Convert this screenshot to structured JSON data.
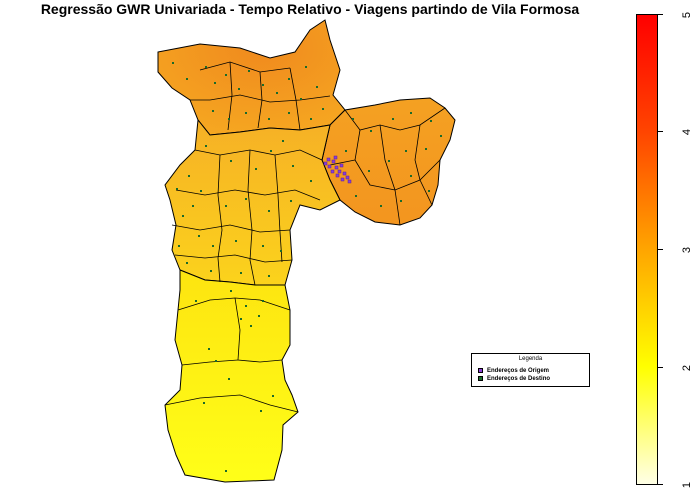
{
  "title": "Regressão GWR Univariada - Tempo Relativo - Viagens partindo de Vila Formosa",
  "legend": {
    "title": "Legenda",
    "items": [
      {
        "label": "Endereços de Origem",
        "color": "#8b3fd6"
      },
      {
        "label": "Endereços de Destino",
        "color": "#1a6b2a"
      }
    ]
  },
  "colorbar": {
    "min": 1,
    "max": 5,
    "ticks": [
      "1",
      "2",
      "3",
      "4",
      "5"
    ],
    "colors": [
      "#ffffe6",
      "#ffff00",
      "#ffa500",
      "#ff4500",
      "#ff0000"
    ]
  },
  "colors": {
    "district_border": "#000000",
    "destination_points": "#1a6b2a",
    "origin_points": "#8b3fd6"
  }
}
